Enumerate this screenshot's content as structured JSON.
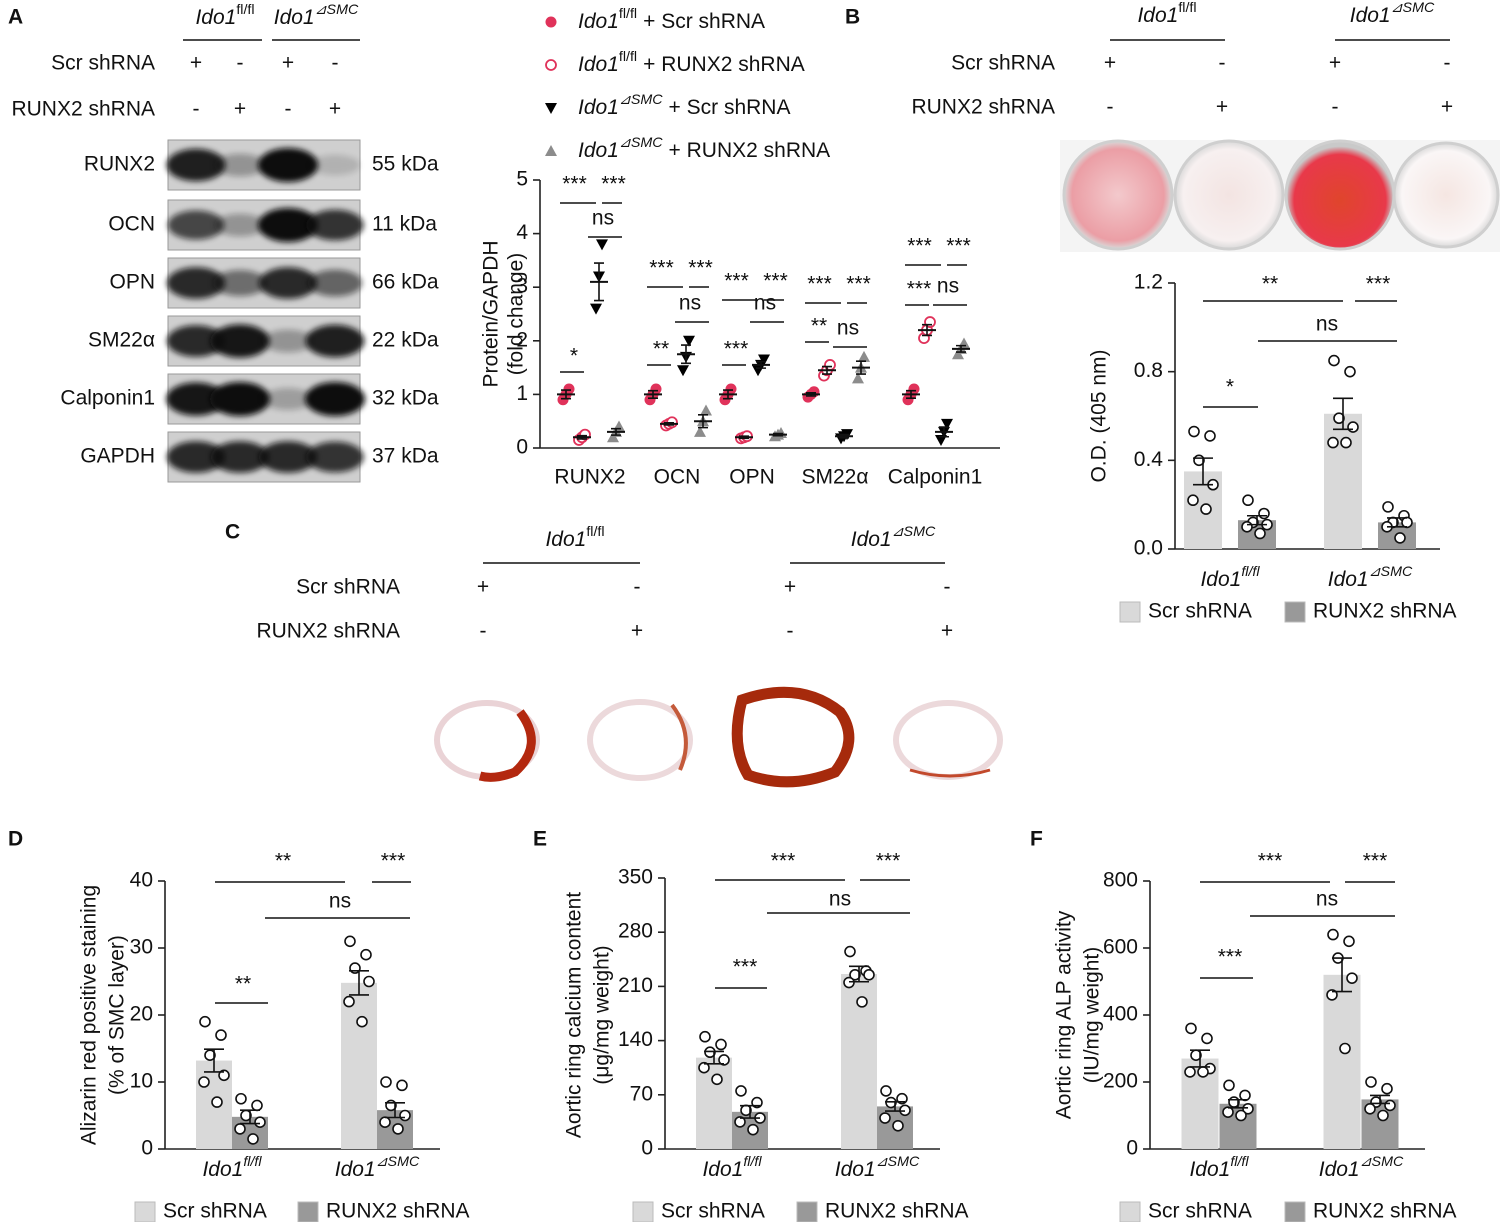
{
  "figure": {
    "panel_letters": [
      "A",
      "B",
      "C",
      "D",
      "E",
      "F"
    ],
    "blot": {
      "genotypes": [
        [
          "Ido1",
          "fl/fl"
        ],
        [
          "Ido1",
          "⊿SMC"
        ]
      ],
      "treatments": [
        {
          "label": "Scr shRNA",
          "signs": [
            "+",
            "-",
            "+",
            "-"
          ]
        },
        {
          "label": "RUNX2 shRNA",
          "signs": [
            "-",
            "+",
            "-",
            "+"
          ]
        }
      ],
      "proteins": [
        {
          "name": "RUNX2",
          "size": "55 kDa"
        },
        {
          "name": "OCN",
          "size": "11 kDa"
        },
        {
          "name": "OPN",
          "size": "66 kDa"
        },
        {
          "name": "SM22α",
          "size": "22 kDa"
        },
        {
          "name": "Calponin1",
          "size": "32 kDa"
        },
        {
          "name": "GAPDH",
          "size": "37 kDa"
        }
      ]
    },
    "dishes": {
      "genotypes": [
        [
          "Ido1",
          "fl/fl"
        ],
        [
          "Ido1",
          "⊿SMC"
        ]
      ],
      "treatments": [
        {
          "label": "Scr shRNA",
          "signs": [
            "+",
            "-",
            "+",
            "-"
          ]
        },
        {
          "label": "RUNX2 shRNA",
          "signs": [
            "-",
            "+",
            "-",
            "+"
          ]
        }
      ]
    },
    "rings": {
      "genotypes": [
        [
          "Ido1",
          "fl/fl"
        ],
        [
          "Ido1",
          "⊿SMC"
        ]
      ],
      "treatments": [
        {
          "label": "Scr shRNA",
          "signs": [
            "+",
            "-",
            "+",
            "-"
          ]
        },
        {
          "label": "RUNX2 shRNA",
          "signs": [
            "-",
            "+",
            "-",
            "+"
          ]
        }
      ]
    }
  },
  "chart_data": [
    {
      "type": "dot",
      "ylabel": [
        "Protein/GAPDH",
        "(fold change)"
      ],
      "categories": [
        "RUNX2",
        "OCN",
        "OPN",
        "SM22α",
        "Calponin1"
      ],
      "ylim": [
        0,
        5
      ],
      "yticks": [
        0,
        1,
        2,
        3,
        4,
        5
      ],
      "series": [
        {
          "name": [
            "Ido1",
            "fl/fl",
            "+ Scr shRNA"
          ],
          "color": "#e0325a",
          "marker": "circle",
          "values": [
            1,
            1,
            1,
            1,
            1
          ],
          "errors": [
            0.08,
            0.07,
            0.08,
            0.03,
            0.07
          ],
          "points": [
            [
              0.9,
              1,
              1.1
            ],
            [
              0.9,
              1,
              1.1
            ],
            [
              0.9,
              1,
              1.1
            ],
            [
              0.95,
              1,
              1.05
            ],
            [
              0.9,
              1,
              1.1
            ]
          ]
        },
        {
          "name": [
            "Ido1",
            "fl/fl",
            "+ RUNX2 shRNA"
          ],
          "color": "#e0325a",
          "marker": "open-circle",
          "values": [
            0.2,
            0.45,
            0.2,
            1.45,
            2.2
          ],
          "errors": [
            0.03,
            0.02,
            0.02,
            0.07,
            0.1
          ],
          "points": [
            [
              0.15,
              0.2,
              0.25
            ],
            [
              0.42,
              0.45,
              0.48
            ],
            [
              0.18,
              0.2,
              0.22
            ],
            [
              1.35,
              1.45,
              1.55
            ],
            [
              2.05,
              2.2,
              2.35
            ]
          ]
        },
        {
          "name": [
            "Ido1",
            "⊿SMC",
            "+ Scr shRNA"
          ],
          "color": "#000000",
          "marker": "triangle-down",
          "values": [
            3.1,
            1.75,
            1.55,
            0.22,
            0.3
          ],
          "errors": [
            0.35,
            0.17,
            0.06,
            0.03,
            0.09
          ],
          "points": [
            [
              2.6,
              3.2,
              3.8
            ],
            [
              1.45,
              1.7,
              2
            ],
            [
              1.45,
              1.55,
              1.65
            ],
            [
              0.18,
              0.22,
              0.26
            ],
            [
              0.15,
              0.3,
              0.45
            ]
          ]
        },
        {
          "name": [
            "Ido1",
            "⊿SMC",
            "+ RUNX2 shRNA"
          ],
          "color": "#8c8c8c",
          "marker": "triangle-up",
          "values": [
            0.3,
            0.5,
            0.25,
            1.5,
            1.85
          ],
          "errors": [
            0.06,
            0.12,
            0.02,
            0.12,
            0.06
          ],
          "points": [
            [
              0.2,
              0.3,
              0.4
            ],
            [
              0.3,
              0.5,
              0.7
            ],
            [
              0.22,
              0.25,
              0.28
            ],
            [
              1.3,
              1.5,
              1.7
            ],
            [
              1.75,
              1.85,
              1.95
            ]
          ]
        }
      ],
      "annotations": [
        [
          "*",
          "***",
          "***",
          "ns"
        ],
        [
          "**",
          "***",
          "***",
          "ns"
        ],
        [
          "***",
          "***",
          "***",
          "ns"
        ],
        [
          "**",
          "***",
          "***",
          "ns"
        ],
        [
          "***",
          "***",
          "***",
          "ns"
        ]
      ]
    },
    {
      "type": "bar",
      "ylabel": [
        "O.D. (405 nm)"
      ],
      "categories": [
        [
          "Ido1",
          "fl/fl"
        ],
        [
          "Ido1",
          "⊿SMC"
        ]
      ],
      "ylim": [
        0,
        1.2
      ],
      "yticks": [
        {
          "value": 0,
          "label": "0.0"
        },
        0.4,
        0.8,
        1.2
      ],
      "series": [
        {
          "name": "Scr shRNA",
          "color": "#d9d9d9",
          "values": [
            0.35,
            0.61
          ],
          "errors": [
            0.06,
            0.07
          ],
          "points": [
            [
              0.53,
              0.51,
              0.4,
              0.29,
              0.22,
              0.18
            ],
            [
              0.85,
              0.8,
              0.59,
              0.55,
              0.48,
              0.48
            ]
          ]
        },
        {
          "name": "RUNX2 shRNA",
          "color": "#999999",
          "values": [
            0.13,
            0.12
          ],
          "errors": [
            0.02,
            0.02
          ],
          "points": [
            [
              0.22,
              0.16,
              0.12,
              0.11,
              0.1,
              0.07
            ],
            [
              0.19,
              0.15,
              0.12,
              0.12,
              0.1,
              0.05
            ]
          ]
        }
      ],
      "annotations": [
        "**",
        "***",
        "ns",
        "*"
      ]
    },
    {
      "type": "bar",
      "ylabel": [
        "Alizarin red positive staining",
        "(% of SMC layer)"
      ],
      "categories": [
        [
          "Ido1",
          "fl/fl"
        ],
        [
          "Ido1",
          "⊿SMC"
        ]
      ],
      "ylim": [
        0,
        40
      ],
      "yticks": [
        0,
        10,
        20,
        30,
        40
      ],
      "series": [
        {
          "name": "Scr shRNA",
          "color": "#d9d9d9",
          "values": [
            13.2,
            24.8
          ],
          "errors": [
            1.7,
            1.8
          ],
          "points": [
            [
              19,
              17,
              14,
              11,
              10,
              7
            ],
            [
              31,
              29,
              27,
              25,
              22,
              19
            ]
          ]
        },
        {
          "name": "RUNX2 shRNA",
          "color": "#999999",
          "values": [
            4.8,
            5.8
          ],
          "errors": [
            1,
            1.1
          ],
          "points": [
            [
              7.5,
              6.5,
              5,
              4,
              3,
              1.5
            ],
            [
              10,
              9.5,
              6.5,
              5,
              4,
              3
            ]
          ]
        }
      ],
      "annotations": [
        "**",
        "***",
        "ns",
        "**"
      ]
    },
    {
      "type": "bar",
      "ylabel": [
        "Aortic ring calcium content",
        "(μg/mg weight)"
      ],
      "categories": [
        [
          "Ido1",
          "fl/fl"
        ],
        [
          "Ido1",
          "⊿SMC"
        ]
      ],
      "ylim": [
        0,
        350
      ],
      "yticks": [
        0,
        70,
        140,
        210,
        280,
        350
      ],
      "series": [
        {
          "name": "Scr shRNA",
          "color": "#d9d9d9",
          "values": [
            118,
            226
          ],
          "errors": [
            8,
            10
          ],
          "points": [
            [
              145,
              135,
              125,
              115,
              105,
              90
            ],
            [
              255,
              230,
              225,
              225,
              215,
              190
            ]
          ]
        },
        {
          "name": "RUNX2 shRNA",
          "color": "#999999",
          "values": [
            48,
            55
          ],
          "errors": [
            8,
            6
          ],
          "points": [
            [
              75,
              60,
              50,
              40,
              35,
              25
            ],
            [
              75,
              65,
              60,
              50,
              40,
              30
            ]
          ]
        }
      ],
      "annotations": [
        "***",
        "***",
        "ns",
        "***"
      ]
    },
    {
      "type": "bar",
      "ylabel": [
        "Aortic ring ALP activity",
        "(IU/mg weight)"
      ],
      "categories": [
        [
          "Ido1",
          "fl/fl"
        ],
        [
          "Ido1",
          "⊿SMC"
        ]
      ],
      "ylim": [
        0,
        800
      ],
      "yticks": [
        0,
        200,
        400,
        600,
        800
      ],
      "series": [
        {
          "name": "Scr shRNA",
          "color": "#d9d9d9",
          "values": [
            270,
            520
          ],
          "errors": [
            25,
            50
          ],
          "points": [
            [
              360,
              330,
              280,
              240,
              230,
              230
            ],
            [
              640,
              620,
              570,
              510,
              460,
              300
            ]
          ]
        },
        {
          "name": "RUNX2 shRNA",
          "color": "#999999",
          "values": [
            135,
            148
          ],
          "errors": [
            12,
            12
          ],
          "points": [
            [
              190,
              160,
              140,
              120,
              110,
              100
            ],
            [
              200,
              180,
              140,
              130,
              120,
              100
            ]
          ]
        }
      ],
      "annotations": [
        "***",
        "***",
        "ns",
        "***"
      ]
    }
  ]
}
